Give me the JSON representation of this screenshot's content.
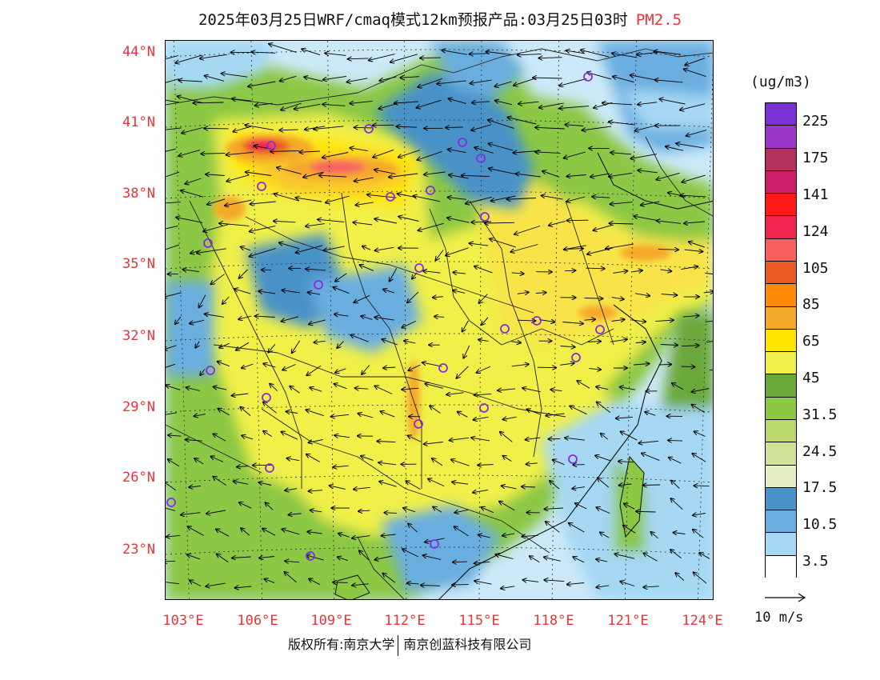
{
  "title": {
    "main": "2025年03月25日WRF/cmaq模式12km预报产品:03月25日03时",
    "variable": "PM2.5"
  },
  "axes": {
    "latitude_labels": [
      "44°N",
      "41°N",
      "38°N",
      "35°N",
      "32°N",
      "29°N",
      "26°N",
      "23°N"
    ],
    "longitude_labels": [
      "103°E",
      "106°E",
      "109°E",
      "112°E",
      "115°E",
      "118°E",
      "121°E",
      "124°E"
    ]
  },
  "colorbar": {
    "unit": "(ug/m3)",
    "labels": [
      "225",
      "175",
      "141",
      "124",
      "105",
      "85",
      "65",
      "45",
      "31.5",
      "24.5",
      "17.5",
      "10.5",
      "3.5"
    ],
    "colors": [
      "#7b2fd6",
      "#9b36c8",
      "#b2325c",
      "#cc1f6e",
      "#ff1a1a",
      "#f0244f",
      "#f86060",
      "#ea5a24",
      "#ff8a0a",
      "#f5a92a",
      "#f8c62e",
      "#ffe600",
      "#f8e44a",
      "#f0f04a",
      "#6aa83a",
      "#8bc844",
      "#bcd96e",
      "#cfe39a",
      "#e6eec4",
      "#4a92c8",
      "#6aaee0",
      "#a6d8f4",
      "#cbe9f8",
      "#ffffff"
    ]
  },
  "wind_reference": {
    "label": "10 m/s"
  },
  "footer": {
    "copyright": "版权所有:南京大学",
    "company": "南京创蓝科技有限公司"
  },
  "monitoring_sites": 28
}
